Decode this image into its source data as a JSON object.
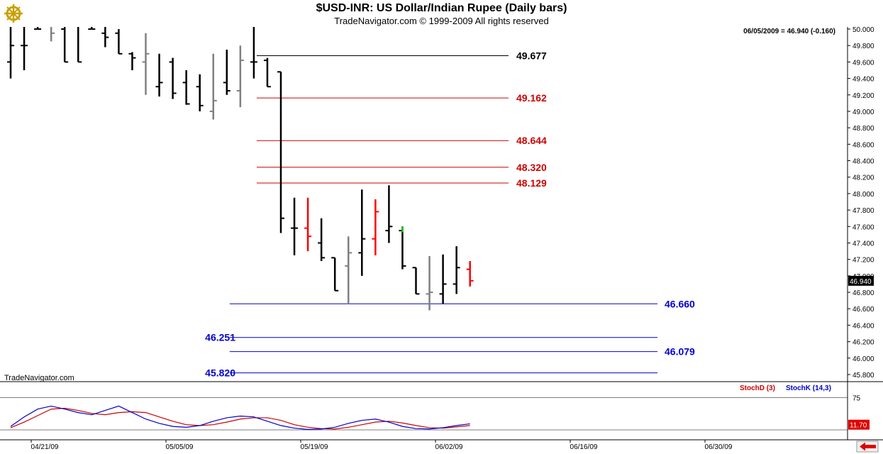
{
  "header": {
    "title": "$USD-INR:  US Dollar/Indian Rupee  (Daily bars)",
    "subtitle": "TradeNavigator.com © 1999-2009 All rights reserved",
    "logo_icon": "ship-wheel-logo"
  },
  "info": {
    "last_price_text": "06/05/2009 = 46.940 (-0.160)",
    "watermark": "TradeNavigator.com",
    "price_badge": "46.940"
  },
  "chart_data": [
    {
      "type": "ohlc",
      "title": "$USD-INR:  US Dollar/Indian Rupee  (Daily bars)",
      "ylim": [
        45.7,
        50.05
      ],
      "yticks": [
        "50.000",
        "49.800",
        "49.600",
        "49.400",
        "49.200",
        "49.000",
        "48.800",
        "48.600",
        "48.400",
        "48.200",
        "48.000",
        "47.800",
        "47.600",
        "47.400",
        "47.200",
        "47.000",
        "46.800",
        "46.600",
        "46.400",
        "46.200",
        "46.000",
        "45.800"
      ],
      "x_ticks": [
        "04/21/09",
        "05/05/09",
        "05/19/09",
        "06/02/09",
        "06/16/09",
        "06/30/09"
      ],
      "bars": [
        {
          "o": 49.6,
          "h": 50.3,
          "l": 49.4,
          "c": 49.8,
          "color": "#000000"
        },
        {
          "o": 49.8,
          "h": 50.4,
          "l": 49.5,
          "c": 49.8,
          "color": "#000000"
        },
        {
          "o": 50.0,
          "h": 50.2,
          "l": 50.0,
          "c": 50.0,
          "color": "#000000"
        },
        {
          "o": 50.2,
          "h": 50.3,
          "l": 49.85,
          "c": 49.95,
          "color": "#808080"
        },
        {
          "o": 50.0,
          "h": 50.3,
          "l": 49.6,
          "c": 49.6,
          "color": "#000000"
        },
        {
          "o": 50.1,
          "h": 50.2,
          "l": 49.6,
          "c": 49.6,
          "color": "#000000"
        },
        {
          "o": 50.0,
          "h": 50.1,
          "l": 50.0,
          "c": 50.0,
          "color": "#000000"
        },
        {
          "o": 49.95,
          "h": 50.05,
          "l": 49.78,
          "c": 49.9,
          "color": "#000000"
        },
        {
          "o": 49.95,
          "h": 50.0,
          "l": 49.7,
          "c": 49.7,
          "color": "#000000"
        },
        {
          "o": 49.7,
          "h": 49.72,
          "l": 49.5,
          "c": 49.65,
          "color": "#000000"
        },
        {
          "o": 49.6,
          "h": 49.95,
          "l": 49.2,
          "c": 49.7,
          "color": "#808080"
        },
        {
          "o": 49.3,
          "h": 49.7,
          "l": 49.18,
          "c": 49.35,
          "color": "#000000"
        },
        {
          "o": 49.6,
          "h": 49.65,
          "l": 49.15,
          "c": 49.22,
          "color": "#000000"
        },
        {
          "o": 49.35,
          "h": 49.5,
          "l": 49.08,
          "c": 49.09,
          "color": "#000000"
        },
        {
          "o": 49.3,
          "h": 49.45,
          "l": 49.0,
          "c": 49.07,
          "color": "#000000"
        },
        {
          "o": 49.0,
          "h": 49.7,
          "l": 48.9,
          "c": 49.13,
          "color": "#808080"
        },
        {
          "o": 49.35,
          "h": 49.75,
          "l": 49.2,
          "c": 49.25,
          "color": "#000000"
        },
        {
          "o": 49.25,
          "h": 49.8,
          "l": 49.05,
          "c": 49.62,
          "color": "#808080"
        },
        {
          "o": 49.6,
          "h": 50.05,
          "l": 49.4,
          "c": 49.6,
          "color": "#000000"
        },
        {
          "o": 49.62,
          "h": 49.65,
          "l": 49.3,
          "c": 49.3,
          "color": "#000000"
        },
        {
          "o": 49.48,
          "h": 49.48,
          "l": 47.52,
          "c": 47.7,
          "color": "#000000"
        },
        {
          "o": 47.58,
          "h": 47.95,
          "l": 47.25,
          "c": 47.58,
          "color": "#000000"
        },
        {
          "o": 47.58,
          "h": 47.95,
          "l": 47.3,
          "c": 47.48,
          "color": "#ff0000"
        },
        {
          "o": 47.4,
          "h": 47.7,
          "l": 47.18,
          "c": 47.22,
          "color": "#000000"
        },
        {
          "o": 47.22,
          "h": 47.22,
          "l": 46.82,
          "c": 46.82,
          "color": "#000000"
        },
        {
          "o": 47.12,
          "h": 47.48,
          "l": 46.66,
          "c": 47.28,
          "color": "#808080"
        },
        {
          "o": 47.28,
          "h": 48.05,
          "l": 47.0,
          "c": 47.45,
          "color": "#000000"
        },
        {
          "o": 47.45,
          "h": 47.93,
          "l": 47.25,
          "c": 47.78,
          "color": "#ff0000"
        },
        {
          "o": 47.55,
          "h": 48.1,
          "l": 47.4,
          "c": 47.6,
          "color": "#000000"
        },
        {
          "o": 47.55,
          "h": 47.6,
          "l": 47.08,
          "c": 47.12,
          "color": "#000000",
          "tick_color": "#00cc00"
        },
        {
          "o": 47.1,
          "h": 47.1,
          "l": 46.78,
          "c": 46.78,
          "color": "#000000"
        },
        {
          "o": 46.78,
          "h": 47.24,
          "l": 46.58,
          "c": 46.8,
          "color": "#808080"
        },
        {
          "o": 46.78,
          "h": 47.26,
          "l": 46.66,
          "c": 46.9,
          "color": "#000000"
        },
        {
          "o": 46.9,
          "h": 47.36,
          "l": 46.78,
          "c": 47.1,
          "color": "#000000"
        },
        {
          "o": 47.08,
          "h": 47.18,
          "l": 46.87,
          "c": 46.94,
          "color": "#ff0000"
        }
      ],
      "levels": [
        {
          "value": 49.677,
          "label": "49.677",
          "color": "#000000",
          "label_side": "right",
          "line_start": 19
        },
        {
          "value": 49.162,
          "label": "49.162",
          "color": "#cc0000",
          "label_side": "right",
          "line_start": 19
        },
        {
          "value": 48.644,
          "label": "48.644",
          "color": "#cc0000",
          "label_side": "right",
          "line_start": 19
        },
        {
          "value": 48.32,
          "label": "48.320",
          "color": "#cc0000",
          "label_side": "right",
          "line_start": 19
        },
        {
          "value": 48.129,
          "label": "48.129",
          "color": "#cc0000",
          "label_side": "right",
          "line_start": 19
        },
        {
          "value": 46.66,
          "label": "46.660",
          "color": "#0000cc",
          "label_side": "far-right",
          "line_start": 17
        },
        {
          "value": 46.251,
          "label": "46.251",
          "color": "#0000cc",
          "label_side": "left",
          "line_start": 17
        },
        {
          "value": 46.079,
          "label": "46.079",
          "color": "#0000cc",
          "label_side": "far-right",
          "line_start": 17
        },
        {
          "value": 45.82,
          "label": "45.820",
          "color": "#0000cc",
          "label_side": "left",
          "line_start": 17
        }
      ]
    },
    {
      "type": "line",
      "legend": [
        {
          "name": "StochD (3)",
          "color": "#cc0000"
        },
        {
          "name": "StochK (14,3)",
          "color": "#0000cc"
        }
      ],
      "ylim": [
        0,
        100
      ],
      "yticks": [
        "75"
      ],
      "ref_line": 75,
      "last_value": "11.70",
      "series": [
        {
          "name": "StochD (3)",
          "color": "#cc0000",
          "values": [
            5,
            18,
            33,
            48,
            50,
            45,
            38,
            35,
            40,
            42,
            40,
            30,
            20,
            12,
            10,
            12,
            18,
            25,
            28,
            28,
            22,
            12,
            6,
            3,
            2,
            6,
            12,
            18,
            20,
            16,
            10,
            5,
            4,
            7,
            10
          ]
        },
        {
          "name": "StochK (14,3)",
          "color": "#0000cc",
          "values": [
            8,
            30,
            48,
            55,
            48,
            40,
            35,
            45,
            55,
            40,
            25,
            15,
            8,
            6,
            10,
            20,
            28,
            32,
            30,
            20,
            10,
            4,
            1,
            2,
            6,
            15,
            22,
            25,
            18,
            8,
            3,
            2,
            5,
            10,
            14
          ]
        }
      ]
    }
  ]
}
